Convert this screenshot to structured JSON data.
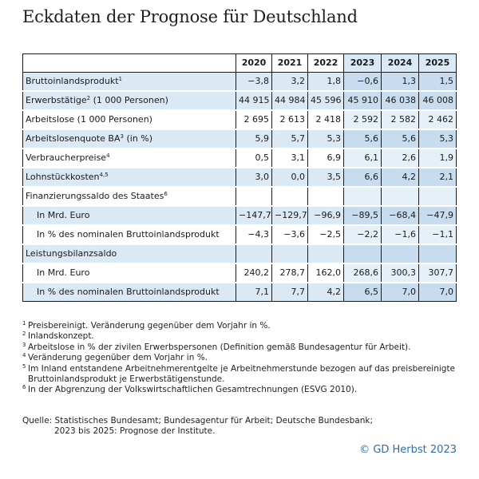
{
  "title": "Eckdaten der Prognose für Deutschland",
  "table": {
    "years": [
      "2020",
      "2021",
      "2022",
      "2023",
      "2024",
      "2025"
    ],
    "forecast_years": [
      "2023",
      "2024",
      "2025"
    ],
    "rows": [
      {
        "label": "Bruttoinlandsprodukt",
        "sup": "1",
        "indent": false,
        "shade": true,
        "values": [
          "−3,8",
          "3,2",
          "1,8",
          "−0,6",
          "1,3",
          "1,5"
        ]
      },
      {
        "label": "Erwerbstätige",
        "sup": "2",
        "label_suffix": " (1 000 Personen)",
        "indent": false,
        "shade": true,
        "values": [
          "44 915",
          "44 984",
          "45 596",
          "45 910",
          "46 038",
          "46 008"
        ]
      },
      {
        "label": "Arbeitslose (1 000 Personen)",
        "sup": "",
        "indent": false,
        "shade": false,
        "values": [
          "2 695",
          "2 613",
          "2 418",
          "2 592",
          "2 582",
          "2 462"
        ]
      },
      {
        "label": "Arbeitslosenquote BA",
        "sup": "3",
        "label_suffix": " (in %)",
        "indent": false,
        "shade": true,
        "values": [
          "5,9",
          "5,7",
          "5,3",
          "5,6",
          "5,6",
          "5,3"
        ]
      },
      {
        "label": "Verbraucherpreise",
        "sup": "4",
        "indent": false,
        "shade": false,
        "values": [
          "0,5",
          "3,1",
          "6,9",
          "6,1",
          "2,6",
          "1,9"
        ]
      },
      {
        "label": "Lohnstückkosten",
        "sup": "4,5",
        "indent": false,
        "shade": true,
        "values": [
          "3,0",
          "0,0",
          "3,5",
          "6,6",
          "4,2",
          "2,1"
        ]
      },
      {
        "label": "Finanzierungssaldo des Staates",
        "sup": "6",
        "indent": false,
        "shade": false,
        "values": [
          "",
          "",
          "",
          "",
          "",
          ""
        ]
      },
      {
        "label": "In Mrd. Euro",
        "sup": "",
        "indent": true,
        "shade": true,
        "values": [
          "−147,7",
          "−129,7",
          "−96,9",
          "−89,5",
          "−68,4",
          "−47,9"
        ]
      },
      {
        "label": "In % des nominalen Bruttoinlandsprodukt",
        "sup": "",
        "indent": true,
        "shade": false,
        "values": [
          "−4,3",
          "−3,6",
          "−2,5",
          "−2,2",
          "−1,6",
          "−1,1"
        ]
      },
      {
        "label": "Leistungsbilanzsaldo",
        "sup": "",
        "indent": false,
        "shade": true,
        "values": [
          "",
          "",
          "",
          "",
          "",
          ""
        ]
      },
      {
        "label": "In Mrd. Euro",
        "sup": "",
        "indent": true,
        "shade": false,
        "values": [
          "240,2",
          "278,7",
          "162,0",
          "268,6",
          "300,3",
          "307,7"
        ]
      },
      {
        "label": "In % des nominalen Bruttoinlandsprodukt",
        "sup": "",
        "indent": true,
        "shade": true,
        "values": [
          "7,1",
          "7,7",
          "4,2",
          "6,5",
          "7,0",
          "7,0"
        ]
      }
    ]
  },
  "footnotes": [
    {
      "mark": "1",
      "text": "Preisbereinigt. Veränderung gegenüber dem Vorjahr in %."
    },
    {
      "mark": "2",
      "text": "Inlandskonzept."
    },
    {
      "mark": "3",
      "text": "Arbeitslose in % der zivilen Erwerbspersonen (Definition gemäß Bundesagentur für Arbeit)."
    },
    {
      "mark": "4",
      "text": "Veränderung gegenüber dem Vorjahr in %."
    },
    {
      "mark": "5",
      "text": "Im Inland entstandene Arbeitnehmerentgelte je Arbeitnehmerstunde bezogen auf das preisbereinigte Bruttoinlandsprodukt je Erwerbstätigenstunde."
    },
    {
      "mark": "6",
      "text": "In der Abgrenzung der Volkswirtschaftlichen Gesamtrechnungen (ESVG 2010)."
    }
  ],
  "source": {
    "line1": "Quelle: Statistisches Bundesamt; Bundesagentur für Arbeit; Deutsche Bundesbank;",
    "line2": "2023 bis 2025: Prognose der Institute."
  },
  "copyright": "© GD Herbst 2023",
  "colors": {
    "shade": "#dbe9f5",
    "forecast_shade": "#c7dcef",
    "forecast_light": "#e6f0f9",
    "accent": "#2f6ea8"
  }
}
